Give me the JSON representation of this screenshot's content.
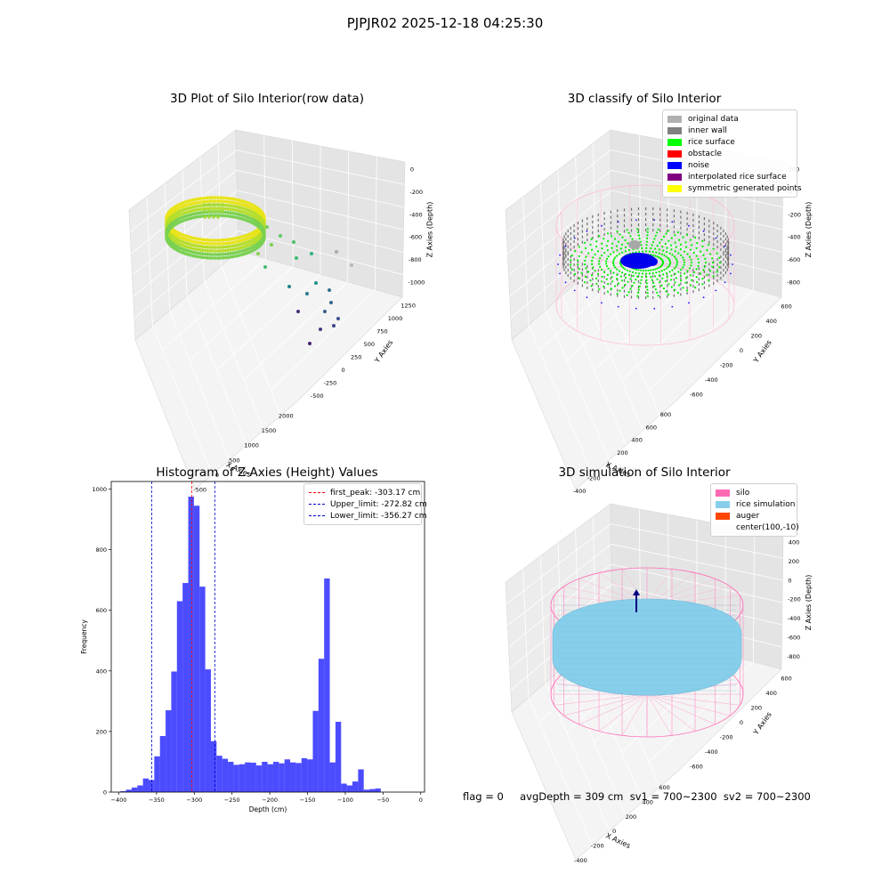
{
  "figure": {
    "suptitle": "PJPJR02 2025-12-18 04:25:30",
    "footer": "flag = 0     avgDepth = 309 cm  sv1 = 700~2300  sv2 = 700~2300"
  },
  "chart_data": [
    {
      "type": "scatter",
      "projection": "3d",
      "title": "3D Plot of Silo Interior(row data)",
      "xlabel": "X Axies",
      "ylabel": "Y Axies",
      "zlabel": "Z Axies (Depth)",
      "x_ticks": [
        "-500",
        "0",
        "500",
        "1000",
        "1500",
        "2000"
      ],
      "y_ticks": [
        "-500",
        "-250",
        "0",
        "250",
        "500",
        "750",
        "1000",
        "1250"
      ],
      "z_ticks": [
        "0",
        "-200",
        "-400",
        "-600",
        "-800",
        "-1000"
      ],
      "colormap": "viridis",
      "grid": true
    },
    {
      "type": "scatter",
      "projection": "3d",
      "title": "3D classify of Silo Interior",
      "xlabel": "X Axies",
      "ylabel": "Y Axies",
      "zlabel": "Z Axies (Depth)",
      "x_ticks": [
        "-400",
        "-200",
        "0",
        "200",
        "400",
        "600",
        "800"
      ],
      "y_ticks": [
        "-600",
        "-400",
        "-200",
        "0",
        "200",
        "400",
        "600"
      ],
      "z_ticks": [
        "200",
        "0",
        "-200",
        "-400",
        "-600",
        "-800"
      ],
      "legend": {
        "placement": "top-right",
        "entries": [
          {
            "name": "original data",
            "color": "#b0b0b0"
          },
          {
            "name": "inner wall",
            "color": "#808080"
          },
          {
            "name": "rice surface",
            "color": "#00ff00"
          },
          {
            "name": "obstacle",
            "color": "#ff0000"
          },
          {
            "name": "noise",
            "color": "#0000ff"
          },
          {
            "name": "interpolated rice surface",
            "color": "#800080"
          },
          {
            "name": "symmetric generated points",
            "color": "#ffff00"
          }
        ]
      },
      "grid": true
    },
    {
      "type": "bar",
      "title": "Histogram of Z-Axies (Height) Values",
      "xlabel": "Depth (cm)",
      "ylabel": "Frequency",
      "xlim": [
        -410,
        5
      ],
      "ylim": [
        0,
        1025
      ],
      "x_ticks": [
        -400,
        -350,
        -300,
        -250,
        -200,
        -150,
        -100,
        -50,
        0
      ],
      "y_ticks": [
        0,
        200,
        400,
        600,
        800,
        1000
      ],
      "bar_color": "#0000ff",
      "bin_width": 7.5,
      "bins_start": -398,
      "values": [
        3,
        8,
        15,
        22,
        45,
        40,
        118,
        185,
        270,
        398,
        630,
        690,
        975,
        945,
        678,
        405,
        168,
        120,
        110,
        100,
        90,
        92,
        98,
        97,
        88,
        100,
        92,
        100,
        95,
        108,
        98,
        96,
        112,
        108,
        268,
        440,
        705,
        98,
        232,
        28,
        22,
        35,
        75,
        8,
        10,
        12
      ],
      "vlines": [
        {
          "name": "first_peak: -303.17 cm",
          "x": -303.17,
          "color": "#ff0000"
        },
        {
          "name": "Upper_limit: -272.82 cm",
          "x": -272.82,
          "color": "#0000cc"
        },
        {
          "name": "Lower_limit: -356.27 cm",
          "x": -356.27,
          "color": "#0000cc"
        }
      ],
      "legend": {
        "placement": "top-right"
      }
    },
    {
      "type": "scatter",
      "projection": "3d",
      "title": "3D simulation of Silo Interior",
      "xlabel": "X Axies",
      "ylabel": "Y Axies",
      "zlabel": "Z Axies (Depth)",
      "x_ticks": [
        "-400",
        "-200",
        "0",
        "200",
        "400",
        "600"
      ],
      "y_ticks": [
        "-600",
        "-400",
        "-200",
        "0",
        "200",
        "400",
        "600"
      ],
      "z_ticks": [
        "400",
        "200",
        "0",
        "-200",
        "-400",
        "-600",
        "-800"
      ],
      "legend": {
        "placement": "top-right",
        "entries": [
          {
            "name": "silo",
            "color": "#ff69b4"
          },
          {
            "name": "rice simulation",
            "color": "#87ceeb"
          },
          {
            "name": "auger",
            "color": "#ff4500"
          },
          {
            "name": "center(100,-10)",
            "color": ""
          }
        ]
      },
      "grid": true
    }
  ]
}
